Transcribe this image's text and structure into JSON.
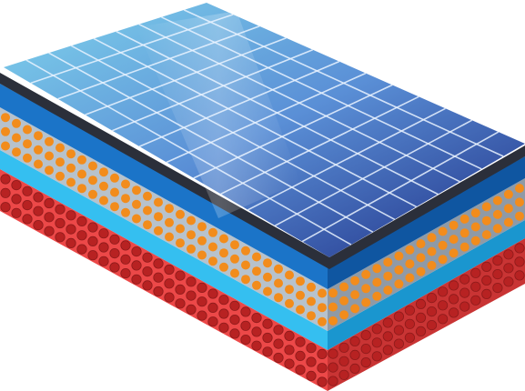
{
  "illustration": {
    "subject": "solar-cell-layer-stack",
    "colors": {
      "panel_top_left": "#7fd3ec",
      "panel_mid": "#5a8fd6",
      "panel_bottom_right": "#1f2f86",
      "grid_lines": "#eaf3ff",
      "panel_edge": "#2b2f3a",
      "blue_layer": "#1b74c8",
      "blue_layer_dark": "#0f56a1",
      "cyan_layer": "#35bff0",
      "cyan_layer_dark": "#1a96cf",
      "gray_layer": "#b7c2cc",
      "gray_layer_dark": "#8f9aa6",
      "orange_dots": "#f28c1c",
      "red_layer": "#ec4848",
      "red_layer_dark": "#c93434",
      "red_dots": "#b72222"
    },
    "grid": {
      "rows": 9,
      "cols": 12
    }
  }
}
